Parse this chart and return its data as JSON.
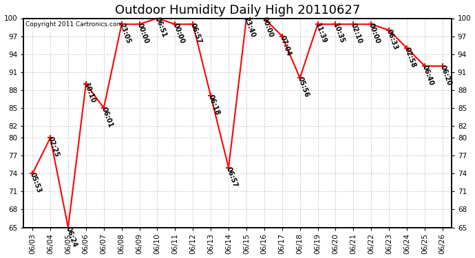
{
  "title": "Outdoor Humidity Daily High 20110627",
  "copyright": "Copyright 2011 Cartronics.com",
  "background_color": "#ffffff",
  "plot_bg_color": "#ffffff",
  "line_color": "#ff0000",
  "marker_color": "#ff0000",
  "ylim": [
    65,
    100
  ],
  "yticks": [
    65,
    68,
    71,
    74,
    77,
    80,
    82,
    85,
    88,
    91,
    94,
    97,
    100
  ],
  "x_labels": [
    "06/03",
    "06/04",
    "06/05",
    "06/06",
    "06/07",
    "06/08",
    "06/09",
    "06/10",
    "06/11",
    "06/12",
    "06/13",
    "06/14",
    "06/15",
    "06/16",
    "06/17",
    "06/18",
    "06/19",
    "06/20",
    "06/21",
    "06/22",
    "06/23",
    "06/24",
    "06/25",
    "06/26"
  ],
  "x_indices": [
    0,
    1,
    2,
    3,
    4,
    5,
    6,
    7,
    8,
    9,
    10,
    11,
    12,
    13,
    14,
    15,
    16,
    17,
    18,
    19,
    20,
    21,
    22,
    23
  ],
  "y_values": [
    74,
    80,
    65,
    89,
    85,
    99,
    99,
    100,
    99,
    99,
    87,
    75,
    100,
    100,
    97,
    90,
    99,
    99,
    99,
    99,
    98,
    95,
    92,
    92
  ],
  "point_labels": [
    "05:53",
    "02:25",
    "06:24",
    "10:10",
    "06:01",
    "23:05",
    "00:00",
    "06:51",
    "00:00",
    "06:57",
    "06:18",
    "06:57",
    "23:40",
    "00:00",
    "07:04",
    "05:56",
    "11:39",
    "10:35",
    "02:10",
    "00:00",
    "06:33",
    "02:58",
    "06:40",
    "06:20"
  ],
  "title_fontsize": 13,
  "tick_fontsize": 7.5,
  "label_fontsize": 7,
  "copyright_fontsize": 6.5,
  "grid_color": "#cccccc",
  "grid_linewidth": 0.6
}
